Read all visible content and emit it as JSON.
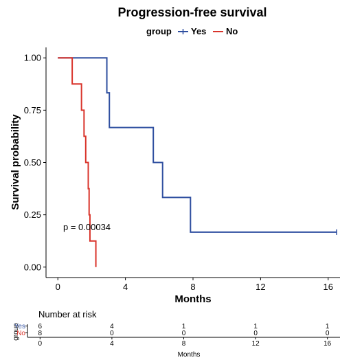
{
  "chart_data": [
    {
      "type": "line",
      "subtype": "kaplan-meier",
      "title": "Progression-free survival",
      "legend": {
        "title": "group",
        "placement": "top",
        "entries": [
          "Yes",
          "No"
        ]
      },
      "xlabel": "Months",
      "ylabel": "Survival probability",
      "xlim": [
        -0.7,
        16.7
      ],
      "ylim": [
        -0.05,
        1.05
      ],
      "xticks": [
        0,
        4,
        8,
        12,
        16
      ],
      "yticks": [
        0.0,
        0.25,
        0.5,
        0.75,
        1.0
      ],
      "ytick_labels": [
        "0.00",
        "0.25",
        "0.50",
        "0.75",
        "1.00"
      ],
      "grid": false,
      "annotation": {
        "text": "p = 0.00034",
        "x": 0.4,
        "y": 0.18
      },
      "series": [
        {
          "name": "Yes",
          "color": "#2f4fa0",
          "steps": [
            [
              0,
              1.0
            ],
            [
              2.9,
              0.833
            ],
            [
              3.05,
              0.667
            ],
            [
              5.65,
              0.5
            ],
            [
              6.2,
              0.333
            ],
            [
              7.85,
              0.167
            ]
          ],
          "end_x": 16.5,
          "censor": [
            [
              16.5,
              0.167
            ]
          ]
        },
        {
          "name": "No",
          "color": "#d9342b",
          "steps": [
            [
              0,
              1.0
            ],
            [
              0.85,
              0.875
            ],
            [
              1.4,
              0.75
            ],
            [
              1.55,
              0.625
            ],
            [
              1.65,
              0.5
            ],
            [
              1.8,
              0.375
            ],
            [
              1.85,
              0.25
            ],
            [
              1.9,
              0.125
            ],
            [
              2.25,
              0.0
            ]
          ],
          "end_x": 2.25,
          "censor": []
        }
      ]
    },
    {
      "type": "table",
      "title": "Number at risk",
      "ylabel": "group",
      "xlabel": "Months",
      "x": [
        0,
        4,
        8,
        12,
        16
      ],
      "rows": [
        {
          "name": "Yes",
          "color": "#2f4fa0",
          "values": [
            6,
            4,
            1,
            1,
            1
          ]
        },
        {
          "name": "No",
          "color": "#d9342b",
          "values": [
            8,
            0,
            0,
            0,
            0
          ]
        }
      ]
    }
  ]
}
